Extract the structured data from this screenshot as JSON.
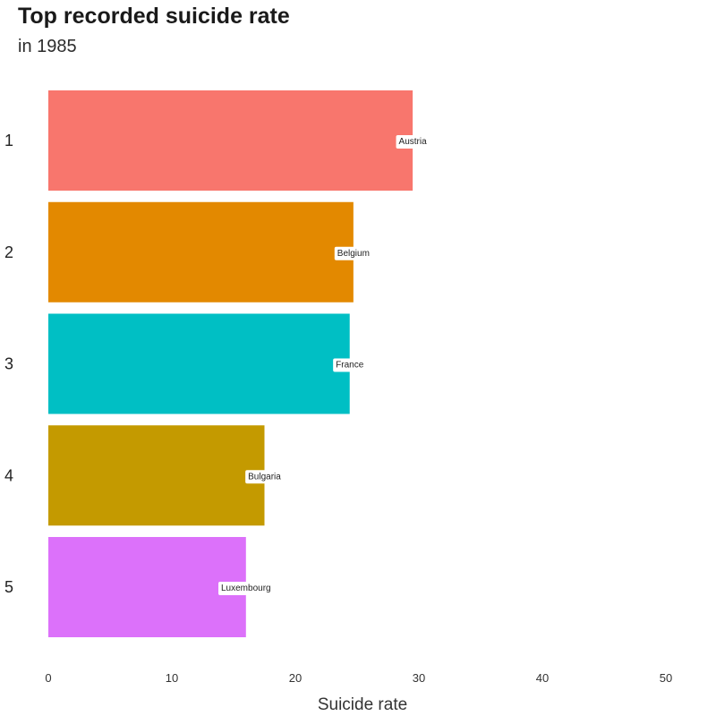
{
  "chart_data": {
    "type": "bar",
    "orientation": "horizontal",
    "title": "Top recorded suicide rate",
    "subtitle": "in 1985",
    "xlabel": "Suicide rate",
    "ylabel": "",
    "xlim": [
      0,
      50
    ],
    "x_ticks": [
      0,
      10,
      20,
      30,
      40,
      50
    ],
    "grid": false,
    "legend": "none",
    "categories": [
      "1",
      "2",
      "3",
      "4",
      "5"
    ],
    "labels": [
      "Austria",
      "Belgium",
      "France",
      "Bulgaria",
      "Luxembourg"
    ],
    "values": [
      29.5,
      24.7,
      24.4,
      17.5,
      16.0
    ],
    "colors": [
      "#F8766D",
      "#E38900",
      "#00BFC4",
      "#C49A00",
      "#DC71FA"
    ]
  }
}
